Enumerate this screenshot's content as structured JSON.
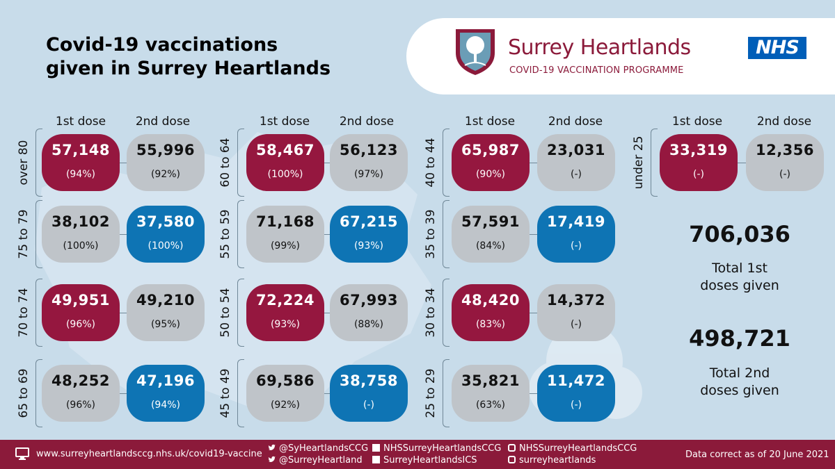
{
  "title": {
    "line1": "Covid-19 vaccinations",
    "line2": "given in Surrey Heartlands"
  },
  "brand": {
    "name": "Surrey Heartlands",
    "subtitle": "COVID-19 VACCINATION PROGRAMME",
    "nhs": "NHS"
  },
  "dose_labels": {
    "first": "1st dose",
    "second": "2nd dose"
  },
  "groups": [
    {
      "age": "over 80",
      "first": {
        "value": "57,148",
        "pct": "(94%)"
      },
      "second": {
        "value": "55,996",
        "pct": "(92%)"
      }
    },
    {
      "age": "75 to 79",
      "first": {
        "value": "38,102",
        "pct": "(100%)"
      },
      "second": {
        "value": "37,580",
        "pct": "(100%)"
      }
    },
    {
      "age": "70 to 74",
      "first": {
        "value": "49,951",
        "pct": "(96%)"
      },
      "second": {
        "value": "49,210",
        "pct": "(95%)"
      }
    },
    {
      "age": "65 to 69",
      "first": {
        "value": "48,252",
        "pct": "(96%)"
      },
      "second": {
        "value": "47,196",
        "pct": "(94%)"
      }
    },
    {
      "age": "60 to 64",
      "first": {
        "value": "58,467",
        "pct": "(100%)"
      },
      "second": {
        "value": "56,123",
        "pct": "(97%)"
      }
    },
    {
      "age": "55 to 59",
      "first": {
        "value": "71,168",
        "pct": "(99%)"
      },
      "second": {
        "value": "67,215",
        "pct": "(93%)"
      }
    },
    {
      "age": "50 to 54",
      "first": {
        "value": "72,224",
        "pct": "(93%)"
      },
      "second": {
        "value": "67,993",
        "pct": "(88%)"
      }
    },
    {
      "age": "45 to 49",
      "first": {
        "value": "69,586",
        "pct": "(92%)"
      },
      "second": {
        "value": "38,758",
        "pct": "(-)"
      }
    },
    {
      "age": "40 to 44",
      "first": {
        "value": "65,987",
        "pct": "(90%)"
      },
      "second": {
        "value": "23,031",
        "pct": "(-)"
      }
    },
    {
      "age": "35 to 39",
      "first": {
        "value": "57,591",
        "pct": "(84%)"
      },
      "second": {
        "value": "17,419",
        "pct": "(-)"
      }
    },
    {
      "age": "30 to 34",
      "first": {
        "value": "48,420",
        "pct": "(83%)"
      },
      "second": {
        "value": "14,372",
        "pct": "(-)"
      }
    },
    {
      "age": "25 to 29",
      "first": {
        "value": "35,821",
        "pct": "(63%)"
      },
      "second": {
        "value": "11,472",
        "pct": "(-)"
      }
    },
    {
      "age": "under 25",
      "first": {
        "value": "33,319",
        "pct": "(-)"
      },
      "second": {
        "value": "12,356",
        "pct": "(-)"
      }
    }
  ],
  "totals": {
    "first_value": "706,036",
    "first_label_line1": "Total 1st",
    "first_label_line2": "doses given",
    "second_value": "498,721",
    "second_label_line1": "Total 2nd",
    "second_label_line2": "doses given"
  },
  "footer": {
    "website": "www.surreyheartlandsccg.nhs.uk/covid19-vaccine",
    "twitter1": "@SyHeartlandsCCG",
    "twitter2": "@SurreyHeartland",
    "facebook1": "NHSSurreyHeartlandsCCG",
    "facebook2": "SurreyHeartlandsICS",
    "instagram1": "NHSSurreyHeartlandsCCG",
    "instagram2": "surreyheartlands",
    "data_note": "Data correct as of 20 June 2021"
  },
  "colors": {
    "maroon": "#95173f",
    "grey": "#bfc4c9",
    "blue": "#0e74b4",
    "background": "#c8dcea",
    "footer": "#8b1a3a",
    "nhs_blue": "#005eb8"
  },
  "icons": [
    "surrey-heartlands-shield-icon",
    "monitor-icon",
    "twitter-icon",
    "facebook-icon",
    "instagram-icon"
  ]
}
